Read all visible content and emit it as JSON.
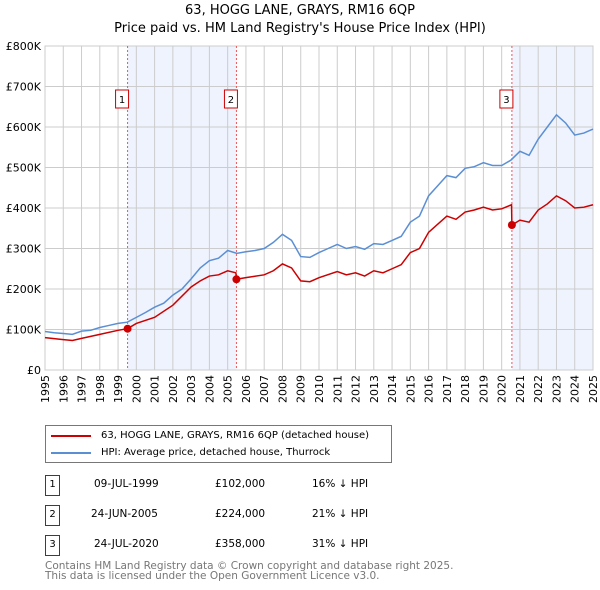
{
  "title": "63, HOGG LANE, GRAYS, RM16 6QP",
  "subtitle": "Price paid vs. HM Land Registry's House Price Index (HPI)",
  "chart_data": {
    "type": "line",
    "ylim": [
      0,
      800000
    ],
    "xlim": [
      1995,
      2025
    ],
    "yticks": [
      {
        "v": 0,
        "l": "£0"
      },
      {
        "v": 100000,
        "l": "£100K"
      },
      {
        "v": 200000,
        "l": "£200K"
      },
      {
        "v": 300000,
        "l": "£300K"
      },
      {
        "v": 400000,
        "l": "£400K"
      },
      {
        "v": 500000,
        "l": "£500K"
      },
      {
        "v": 600000,
        "l": "£600K"
      },
      {
        "v": 700000,
        "l": "£700K"
      },
      {
        "v": 800000,
        "l": "£800K"
      }
    ],
    "xticks": [
      "1995",
      "1996",
      "1997",
      "1998",
      "1999",
      "2000",
      "2001",
      "2002",
      "2003",
      "2004",
      "2005",
      "2006",
      "2007",
      "2008",
      "2009",
      "2010",
      "2011",
      "2012",
      "2013",
      "2014",
      "2015",
      "2016",
      "2017",
      "2018",
      "2019",
      "2020",
      "2021",
      "2022",
      "2023",
      "2024",
      "2025"
    ],
    "shaded": [
      [
        1999.52,
        2005.48
      ],
      [
        2020.56,
        2025
      ]
    ],
    "series": [
      {
        "name": "63, HOGG LANE, GRAYS, RM16 6QP (detached house)",
        "color": "#cc0000",
        "x": [
          1995,
          1996,
          1996.5,
          1997,
          1998,
          1999,
          1999.52,
          2000,
          2001,
          2002,
          2003,
          2003.5,
          2004,
          2004.5,
          2005,
          2005.45,
          2005.48,
          2006,
          2007,
          2007.5,
          2008,
          2008.5,
          2009,
          2009.5,
          2010,
          2011,
          2011.5,
          2012,
          2012.5,
          2013,
          2013.5,
          2014,
          2014.5,
          2015,
          2015.5,
          2016,
          2016.5,
          2017,
          2017.5,
          2018,
          2018.5,
          2019,
          2019.5,
          2020,
          2020.54,
          2020.56,
          2021,
          2021.5,
          2022,
          2022.5,
          2023,
          2023.5,
          2024,
          2024.5,
          2025
        ],
        "y": [
          80000,
          75000,
          73000,
          78000,
          88000,
          98000,
          102000,
          115000,
          130000,
          160000,
          205000,
          220000,
          232000,
          235000,
          245000,
          240000,
          224000,
          228000,
          235000,
          245000,
          262000,
          252000,
          220000,
          218000,
          228000,
          243000,
          235000,
          240000,
          232000,
          245000,
          240000,
          250000,
          260000,
          290000,
          300000,
          340000,
          360000,
          380000,
          372000,
          390000,
          395000,
          402000,
          395000,
          398000,
          408000,
          358000,
          370000,
          365000,
          395000,
          410000,
          430000,
          418000,
          400000,
          402000,
          408000
        ]
      },
      {
        "name": "HPI: Average price, detached house, Thurrock",
        "color": "#5b8fd4",
        "x": [
          1995,
          1995.5,
          1996,
          1996.5,
          1997,
          1997.5,
          1998,
          1998.5,
          1999,
          1999.5,
          2000,
          2000.5,
          2001,
          2001.5,
          2002,
          2002.5,
          2003,
          2003.5,
          2004,
          2004.5,
          2005,
          2005.5,
          2006,
          2006.5,
          2007,
          2007.5,
          2008,
          2008.5,
          2009,
          2009.5,
          2010,
          2010.5,
          2011,
          2011.5,
          2012,
          2012.5,
          2013,
          2013.5,
          2014,
          2014.5,
          2015,
          2015.5,
          2016,
          2016.5,
          2017,
          2017.5,
          2018,
          2018.5,
          2019,
          2019.5,
          2020,
          2020.5,
          2021,
          2021.5,
          2022,
          2022.5,
          2023,
          2023.5,
          2024,
          2024.5,
          2025
        ],
        "y": [
          95000,
          92000,
          90000,
          88000,
          96000,
          98000,
          105000,
          110000,
          115000,
          118000,
          130000,
          142000,
          155000,
          165000,
          185000,
          200000,
          225000,
          252000,
          270000,
          276000,
          295000,
          288000,
          292000,
          295000,
          300000,
          315000,
          335000,
          320000,
          280000,
          278000,
          290000,
          300000,
          310000,
          300000,
          305000,
          298000,
          312000,
          310000,
          320000,
          330000,
          365000,
          380000,
          430000,
          455000,
          480000,
          475000,
          498000,
          502000,
          512000,
          505000,
          505000,
          518000,
          540000,
          530000,
          570000,
          600000,
          630000,
          610000,
          580000,
          585000,
          595000
        ]
      }
    ],
    "sales": [
      {
        "n": "1",
        "x": 1999.52,
        "y": 102000
      },
      {
        "n": "2",
        "x": 2005.48,
        "y": 224000
      },
      {
        "n": "3",
        "x": 2020.56,
        "y": 358000
      }
    ]
  },
  "transactions": [
    {
      "n": "1",
      "date": "09-JUL-1999",
      "price": "£102,000",
      "hpi": "16% ↓ HPI"
    },
    {
      "n": "2",
      "date": "24-JUN-2005",
      "price": "£224,000",
      "hpi": "21% ↓ HPI"
    },
    {
      "n": "3",
      "date": "24-JUL-2020",
      "price": "£358,000",
      "hpi": "31% ↓ HPI"
    }
  ],
  "footer": [
    "Contains HM Land Registry data © Crown copyright and database right 2025.",
    "This data is licensed under the Open Government Licence v3.0."
  ]
}
